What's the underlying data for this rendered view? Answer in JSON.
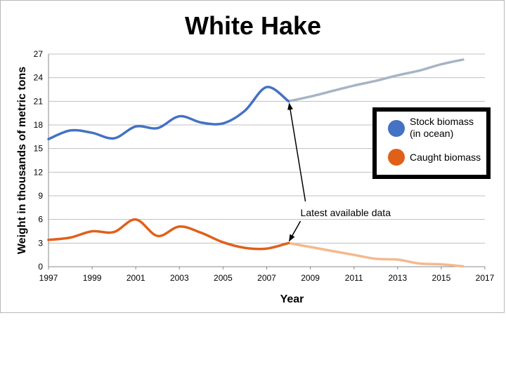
{
  "chart_data": {
    "type": "line",
    "title": "White Hake",
    "xlabel": "Year",
    "ylabel": "Weight in thousands of metric tons",
    "xlim": [
      1997,
      2017
    ],
    "ylim": [
      0,
      27
    ],
    "x_ticks": [
      "1997",
      "1999",
      "2001",
      "2003",
      "2005",
      "2007",
      "2009",
      "2011",
      "2013",
      "2015",
      "2017"
    ],
    "y_ticks": [
      "0",
      "3",
      "6",
      "9",
      "12",
      "15",
      "18",
      "21",
      "24",
      "27"
    ],
    "grid": true,
    "legend_position": "right",
    "annotation": "Latest available data",
    "series": [
      {
        "name": "Stock biomass (in ocean)",
        "name_lines": [
          "Stock biomass",
          "(in ocean)"
        ],
        "color": "#4472c4",
        "projection_color": "#a7b4c6",
        "points": [
          [
            1997,
            16.2
          ],
          [
            1998,
            17.3
          ],
          [
            1999,
            17.0
          ],
          [
            2000,
            16.3
          ],
          [
            2001,
            17.8
          ],
          [
            2002,
            17.6
          ],
          [
            2003,
            19.1
          ],
          [
            2004,
            18.3
          ],
          [
            2005,
            18.2
          ],
          [
            2006,
            19.8
          ],
          [
            2007,
            22.8
          ],
          [
            2008,
            21.0
          ]
        ],
        "projection": [
          [
            2008,
            21.0
          ],
          [
            2009,
            21.6
          ],
          [
            2010,
            22.3
          ],
          [
            2011,
            23.0
          ],
          [
            2012,
            23.6
          ],
          [
            2013,
            24.3
          ],
          [
            2014,
            24.9
          ],
          [
            2015,
            25.7
          ],
          [
            2016,
            26.3
          ]
        ]
      },
      {
        "name": "Caught biomass",
        "name_lines": [
          "Caught biomass"
        ],
        "color": "#e0601a",
        "projection_color": "#f4b98e",
        "points": [
          [
            1997,
            3.4
          ],
          [
            1998,
            3.7
          ],
          [
            1999,
            4.5
          ],
          [
            2000,
            4.4
          ],
          [
            2001,
            6.0
          ],
          [
            2002,
            3.9
          ],
          [
            2003,
            5.1
          ],
          [
            2004,
            4.3
          ],
          [
            2005,
            3.1
          ],
          [
            2006,
            2.4
          ],
          [
            2007,
            2.3
          ],
          [
            2008,
            3.0
          ]
        ],
        "projection": [
          [
            2008,
            3.0
          ],
          [
            2009,
            2.5
          ],
          [
            2010,
            2.0
          ],
          [
            2011,
            1.5
          ],
          [
            2012,
            1.0
          ],
          [
            2013,
            0.9
          ],
          [
            2014,
            0.4
          ],
          [
            2015,
            0.3
          ],
          [
            2016,
            0.05
          ]
        ]
      }
    ]
  }
}
